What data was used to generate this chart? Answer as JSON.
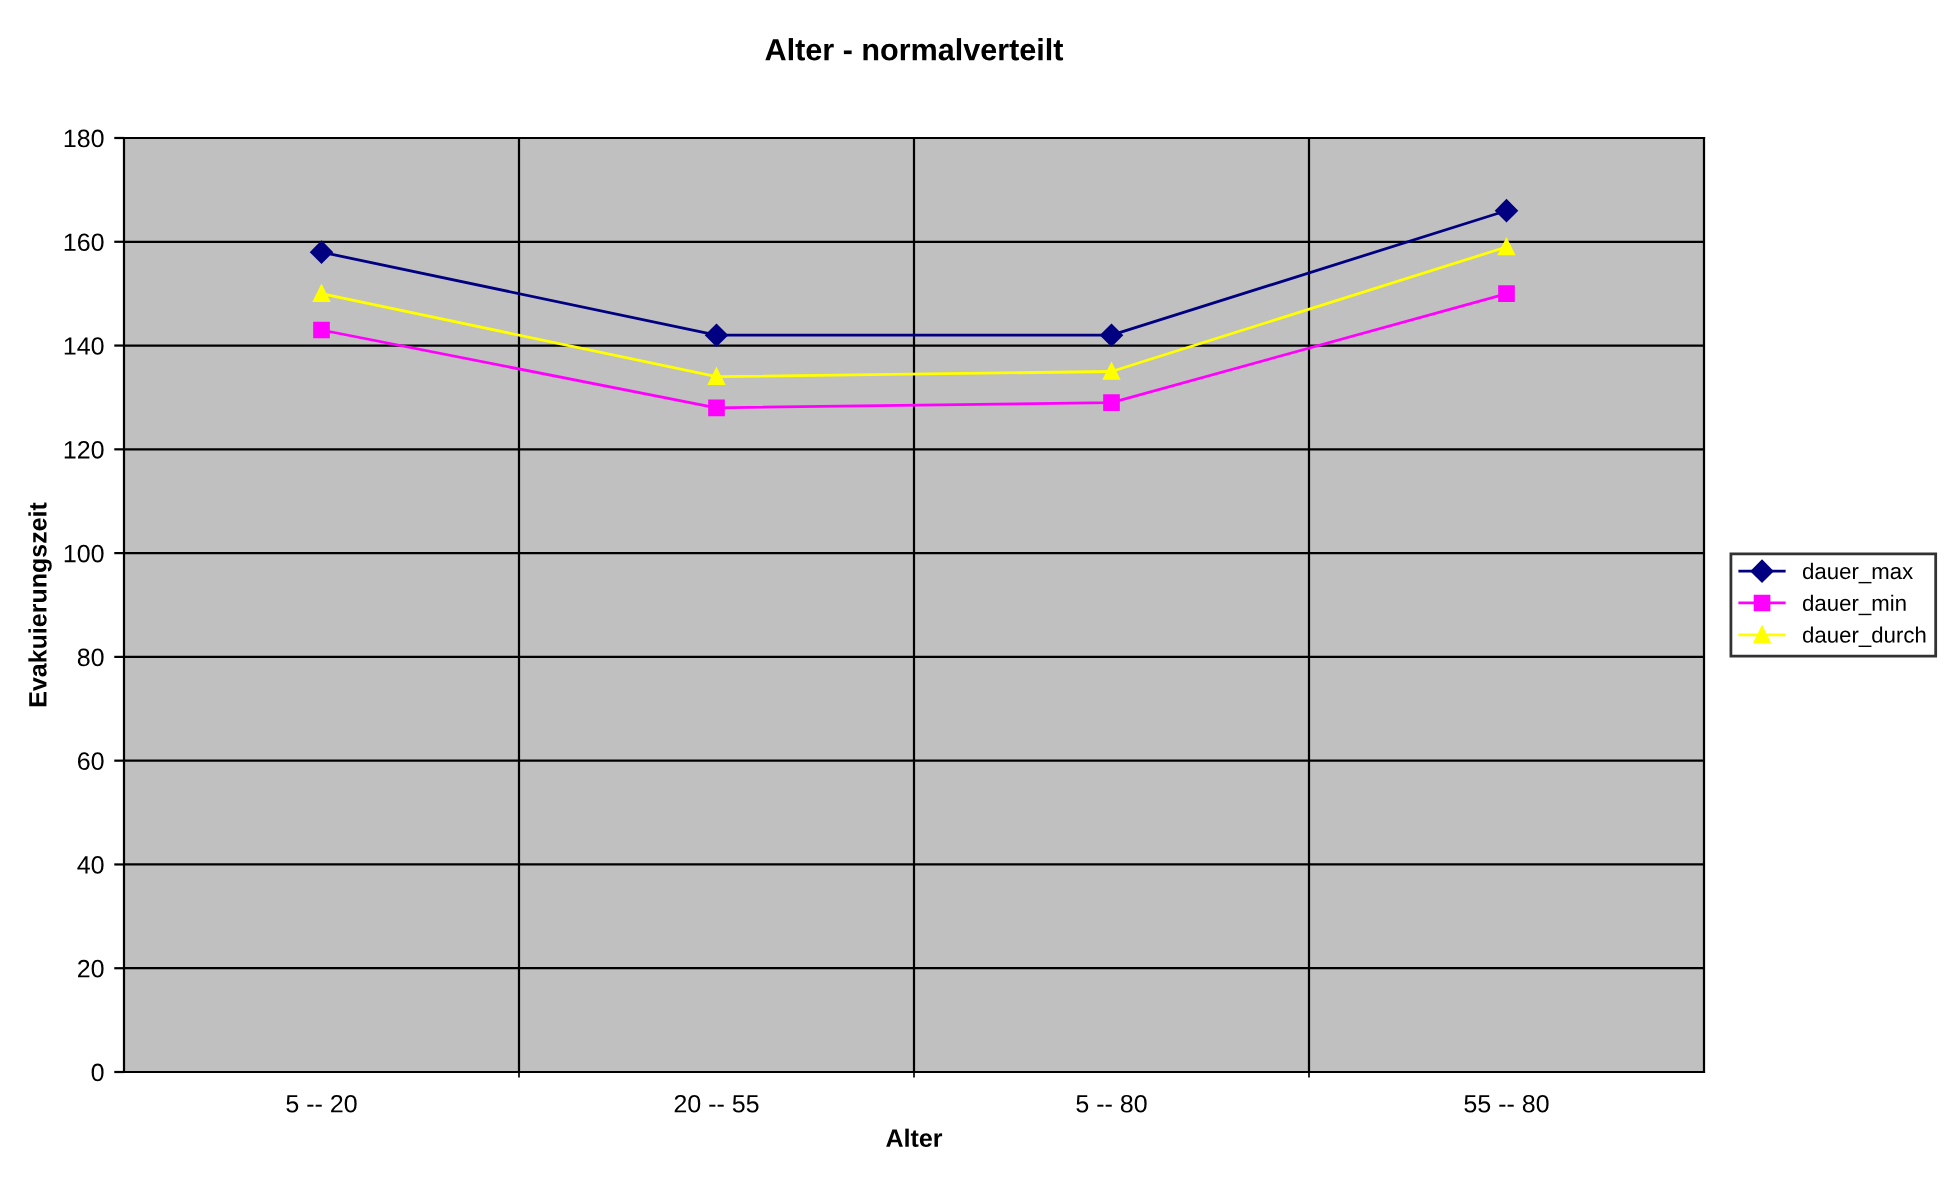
{
  "chart_data": {
    "type": "line",
    "title": "Alter - normalverteilt",
    "xlabel": "Alter",
    "ylabel": "Evakuierungszeit",
    "categories": [
      "5 -- 20",
      "20 -- 55",
      "5 -- 80",
      "55 -- 80"
    ],
    "series": [
      {
        "name": "dauer_max",
        "color": "#000080",
        "marker": "diamond",
        "values": [
          158,
          142,
          142,
          166
        ]
      },
      {
        "name": "dauer_min",
        "color": "#ff00ff",
        "marker": "square",
        "values": [
          143,
          128,
          129,
          150
        ]
      },
      {
        "name": "dauer_durch",
        "color": "#ffff00",
        "marker": "triangle",
        "values": [
          150,
          134,
          135,
          159
        ]
      }
    ],
    "ylim": [
      0,
      180
    ],
    "yticks": [
      0,
      20,
      40,
      60,
      80,
      100,
      120,
      140,
      160,
      180
    ],
    "grid": true,
    "legend": "right"
  }
}
